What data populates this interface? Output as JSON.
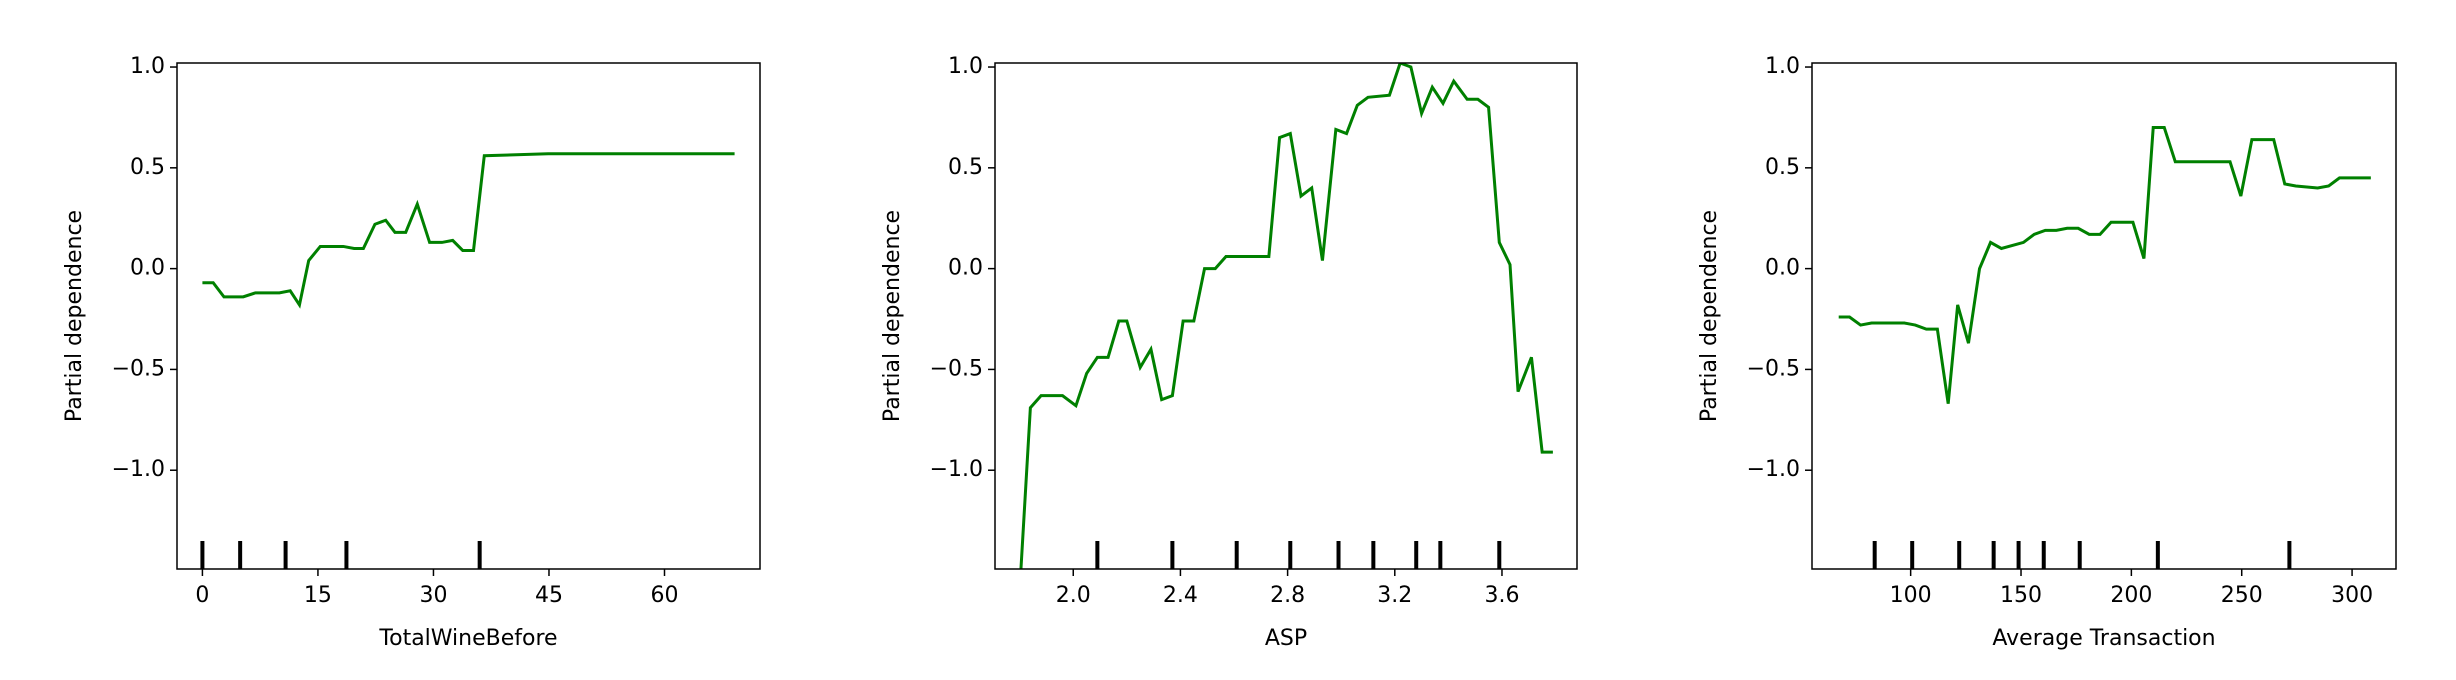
{
  "chart_data": [
    {
      "type": "line",
      "xlabel": "TotalWineBefore",
      "ylabel": "Partial dependence",
      "color": "#008000",
      "x": [
        0,
        1.4,
        2.8,
        5.3,
        6.9,
        10,
        11.4,
        12.6,
        13.8,
        15.3,
        18.3,
        19.7,
        20.9,
        22.4,
        23.8,
        25,
        26.4,
        27.9,
        29.5,
        31.1,
        32.5,
        33.8,
        35.2,
        36.6,
        44.9,
        69.1
      ],
      "values": [
        -0.07,
        -0.07,
        -0.14,
        -0.14,
        -0.12,
        -0.12,
        -0.11,
        -0.18,
        0.04,
        0.11,
        0.11,
        0.1,
        0.1,
        0.22,
        0.24,
        0.18,
        0.18,
        0.32,
        0.13,
        0.13,
        0.14,
        0.09,
        0.09,
        0.56,
        0.57,
        0.57
      ],
      "deciles": [
        0,
        4.9,
        10.8,
        18.7,
        36
      ],
      "xlim": [
        -3.3,
        72.4
      ],
      "ylim": [
        -1.49,
        1.02
      ],
      "xticks": [
        0,
        15,
        30,
        45,
        60
      ],
      "yticks": [
        {
          "value": -1.0,
          "label": "−1.0"
        },
        {
          "value": -0.5,
          "label": "−0.5"
        },
        {
          "value": 0,
          "label": "0.0"
        },
        0.5,
        {
          "value": 1.0,
          "label": "1.0"
        }
      ]
    },
    {
      "type": "line",
      "xlabel": "ASP",
      "ylabel": "Partial dependence",
      "color": "#008000",
      "x": [
        1.8,
        1.84,
        1.88,
        1.96,
        2.01,
        2.05,
        2.09,
        2.13,
        2.17,
        2.2,
        2.25,
        2.29,
        2.33,
        2.37,
        2.41,
        2.45,
        2.49,
        2.53,
        2.57,
        2.73,
        2.77,
        2.81,
        2.85,
        2.89,
        2.93,
        2.98,
        3.02,
        3.06,
        3.1,
        3.18,
        3.22,
        3.26,
        3.3,
        3.34,
        3.38,
        3.42,
        3.47,
        3.51,
        3.55,
        3.59,
        3.63,
        3.66,
        3.71,
        3.75,
        3.79
      ],
      "values": [
        -1.6,
        -0.69,
        -0.63,
        -0.63,
        -0.68,
        -0.52,
        -0.44,
        -0.44,
        -0.26,
        -0.26,
        -0.49,
        -0.4,
        -0.65,
        -0.63,
        -0.26,
        -0.26,
        0.0,
        0.0,
        0.06,
        0.06,
        0.65,
        0.67,
        0.36,
        0.4,
        0.04,
        0.69,
        0.67,
        0.81,
        0.85,
        0.86,
        1.02,
        1.0,
        0.77,
        0.9,
        0.82,
        0.93,
        0.84,
        0.84,
        0.8,
        0.13,
        0.02,
        -0.61,
        -0.44,
        -0.91,
        -0.91
      ],
      "deciles": [
        2.09,
        2.37,
        2.61,
        2.81,
        2.99,
        3.12,
        3.28,
        3.37,
        3.59
      ],
      "xlim": [
        1.708,
        3.88
      ],
      "ylim": [
        -1.49,
        1.02
      ],
      "xticks": [
        {
          "value": 2.0,
          "label": "2.0"
        },
        2.4,
        2.8,
        3.2,
        3.6
      ],
      "yticks": [
        {
          "value": -1.0,
          "label": "−1.0"
        },
        {
          "value": -0.5,
          "label": "−0.5"
        },
        {
          "value": 0,
          "label": "0.0"
        },
        0.5,
        {
          "value": 1.0,
          "label": "1.0"
        }
      ]
    },
    {
      "type": "line",
      "xlabel": "Average Transaction",
      "ylabel": "Partial dependence",
      "color": "#008000",
      "x": [
        67.4,
        72.3,
        77.3,
        82.3,
        97.2,
        102.1,
        107.1,
        112.1,
        117.0,
        121.3,
        126.2,
        131.2,
        136.2,
        141.1,
        151.1,
        156.0,
        161.0,
        166.0,
        170.9,
        175.9,
        180.9,
        185.8,
        190.8,
        200.7,
        205.7,
        209.9,
        214.9,
        219.9,
        224.8,
        244.7,
        249.6,
        254.6,
        264.5,
        269.5,
        274.5,
        284.4,
        289.4,
        294.3,
        308.5
      ],
      "values": [
        -0.24,
        -0.24,
        -0.28,
        -0.27,
        -0.27,
        -0.28,
        -0.3,
        -0.3,
        -0.67,
        -0.18,
        -0.37,
        0.0,
        0.13,
        0.1,
        0.13,
        0.17,
        0.19,
        0.19,
        0.2,
        0.2,
        0.17,
        0.17,
        0.23,
        0.23,
        0.05,
        0.7,
        0.7,
        0.53,
        0.53,
        0.53,
        0.36,
        0.64,
        0.64,
        0.42,
        0.41,
        0.4,
        0.41,
        0.45,
        0.45
      ],
      "deciles": [
        83.7,
        100.7,
        122,
        137.6,
        148.9,
        160.3,
        176.6,
        212,
        271.6
      ],
      "xlim": [
        55.3,
        319.9
      ],
      "ylim": [
        -1.49,
        1.02
      ],
      "xticks": [
        100,
        150,
        200,
        250,
        300
      ],
      "yticks": [
        {
          "value": -1.0,
          "label": "−1.0"
        },
        {
          "value": -0.5,
          "label": "−0.5"
        },
        {
          "value": 0,
          "label": "0.0"
        },
        0.5,
        {
          "value": 1.0,
          "label": "1.0"
        }
      ]
    }
  ]
}
